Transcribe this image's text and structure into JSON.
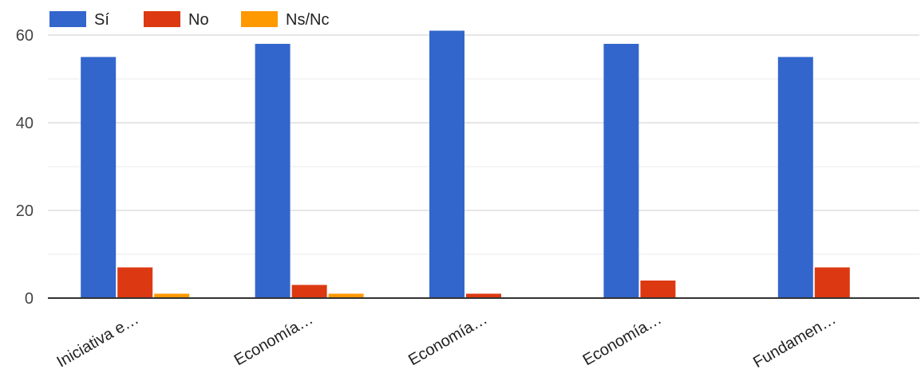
{
  "chart_data": {
    "type": "bar",
    "categories": [
      "Iniciativa e…",
      "Economía…",
      "Economía…",
      "Economía…",
      "Fundamen…"
    ],
    "series": [
      {
        "name": "Sí",
        "color": "#3366cc",
        "values": [
          55,
          58,
          61,
          58,
          55
        ]
      },
      {
        "name": "No",
        "color": "#dc3912",
        "values": [
          7,
          3,
          1,
          4,
          7
        ]
      },
      {
        "name": "Ns/Nc",
        "color": "#ff9900",
        "values": [
          1,
          1,
          0,
          0,
          0
        ]
      }
    ],
    "title": "",
    "xlabel": "",
    "ylabel": "",
    "ylim": [
      0,
      60
    ],
    "yticks": [
      0,
      20,
      40,
      60
    ],
    "grid": true,
    "legend_position": "top-left"
  }
}
